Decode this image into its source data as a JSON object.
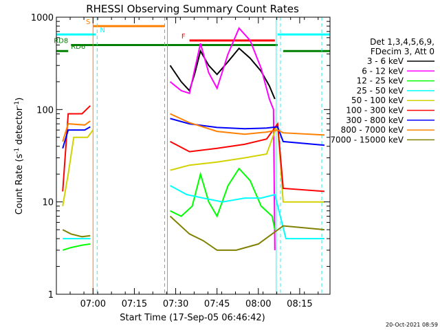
{
  "chart_data": {
    "type": "line",
    "title": "RHESSI Observing Summary Count Rates",
    "xlabel": "Start Time (17-Sep-05 06:46:42)",
    "ylabel_main": "Count Rate (s",
    "ylabel_sup1": "-1",
    "ylabel_mid": " detector",
    "ylabel_sup2": "-1",
    "ylabel_end": ")",
    "y_scale": "log",
    "ylim": [
      1,
      1000
    ],
    "xlim": [
      "06:46:42",
      "08:26:00"
    ],
    "x_ticks": [
      "07:00",
      "07:15",
      "07:30",
      "07:45",
      "08:00",
      "08:15"
    ],
    "y_ticks": [
      {
        "value": 1,
        "label": "1"
      },
      {
        "value": 10,
        "label": "10"
      },
      {
        "value": 100,
        "label": "100"
      },
      {
        "value": 1000,
        "label": "1000"
      }
    ],
    "legend_placement": "right",
    "legend_header": [
      "Det 1,3,4,5,6,9,",
      "FDecim 3, Att 0"
    ],
    "timestamp": "20-Oct-2021 08:59",
    "series": [
      {
        "name": "3 - 6 keV",
        "color": "#000000",
        "points": [
          [
            "07:28:00",
            300
          ],
          [
            "07:32:00",
            200
          ],
          [
            "07:35:00",
            160
          ],
          [
            "07:37:00",
            250
          ],
          [
            "07:39:00",
            430
          ],
          [
            "07:42:00",
            300
          ],
          [
            "07:45:00",
            240
          ],
          [
            "07:49:00",
            330
          ],
          [
            "07:53:00",
            460
          ],
          [
            "07:57:00",
            360
          ],
          [
            "08:01:00",
            260
          ],
          [
            "08:04:00",
            180
          ],
          [
            "08:06:00",
            130
          ]
        ]
      },
      {
        "name": "6 - 12 keV",
        "color": "#ff00ff",
        "points": [
          [
            "07:28:00",
            200
          ],
          [
            "07:32:00",
            160
          ],
          [
            "07:35:00",
            150
          ],
          [
            "07:37:00",
            280
          ],
          [
            "07:39:00",
            520
          ],
          [
            "07:42:00",
            250
          ],
          [
            "07:45:00",
            170
          ],
          [
            "07:49:00",
            400
          ],
          [
            "07:53:00",
            760
          ],
          [
            "07:57:00",
            560
          ],
          [
            "08:01:00",
            280
          ],
          [
            "08:04:00",
            130
          ],
          [
            "08:05:30",
            100
          ],
          [
            "08:06:00",
            3
          ]
        ]
      },
      {
        "name": "12 - 25 keV",
        "color": "#00ff00",
        "points": [
          [
            "06:49:00",
            3
          ],
          [
            "06:52:00",
            3.2
          ],
          [
            "06:56:00",
            3.4
          ],
          [
            "06:59:00",
            3.5
          ],
          [
            "07:28:00",
            8
          ],
          [
            "07:32:00",
            7
          ],
          [
            "07:36:00",
            9
          ],
          [
            "07:39:00",
            20
          ],
          [
            "07:42:00",
            10
          ],
          [
            "07:45:00",
            7
          ],
          [
            "07:49:00",
            15
          ],
          [
            "07:53:00",
            23
          ],
          [
            "07:57:00",
            17
          ],
          [
            "08:01:00",
            9
          ],
          [
            "08:05:00",
            7
          ],
          [
            "08:06:00",
            5
          ]
        ]
      },
      {
        "name": "25 - 50 keV",
        "color": "#00ffff",
        "points": [
          [
            "06:49:00",
            4
          ],
          [
            "06:56:00",
            4
          ],
          [
            "06:59:00",
            4
          ],
          [
            "07:28:00",
            15
          ],
          [
            "07:34:00",
            12
          ],
          [
            "07:40:00",
            11
          ],
          [
            "07:47:00",
            10
          ],
          [
            "07:55:00",
            11
          ],
          [
            "08:01:00",
            11
          ],
          [
            "08:06:00",
            12
          ],
          [
            "08:10:00",
            4
          ],
          [
            "08:24:00",
            4
          ]
        ]
      },
      {
        "name": "50 - 100 keV",
        "color": "#d2d200",
        "points": [
          [
            "06:49:00",
            9
          ],
          [
            "06:51:00",
            20
          ],
          [
            "06:53:00",
            50
          ],
          [
            "06:58:00",
            50
          ],
          [
            "07:00:00",
            60
          ],
          [
            "07:28:00",
            22
          ],
          [
            "07:35:00",
            25
          ],
          [
            "07:45:00",
            27
          ],
          [
            "07:55:00",
            30
          ],
          [
            "08:03:00",
            33
          ],
          [
            "08:07:00",
            70
          ],
          [
            "08:09:00",
            10
          ],
          [
            "08:24:00",
            10
          ]
        ]
      },
      {
        "name": "100 - 300 keV",
        "color": "#ff0000",
        "points": [
          [
            "06:49:00",
            13
          ],
          [
            "06:51:00",
            90
          ],
          [
            "06:56:00",
            90
          ],
          [
            "06:59:00",
            110
          ],
          [
            "07:28:00",
            45
          ],
          [
            "07:35:00",
            35
          ],
          [
            "07:45:00",
            38
          ],
          [
            "07:55:00",
            42
          ],
          [
            "08:03:00",
            48
          ],
          [
            "08:07:00",
            70
          ],
          [
            "08:09:00",
            14
          ],
          [
            "08:24:00",
            13
          ]
        ]
      },
      {
        "name": "300 - 800 keV",
        "color": "#0000ff",
        "points": [
          [
            "06:49:00",
            38
          ],
          [
            "06:51:00",
            60
          ],
          [
            "06:57:00",
            60
          ],
          [
            "06:59:00",
            65
          ],
          [
            "07:28:00",
            80
          ],
          [
            "07:35:00",
            70
          ],
          [
            "07:45:00",
            64
          ],
          [
            "07:55:00",
            62
          ],
          [
            "08:03:00",
            63
          ],
          [
            "08:07:00",
            65
          ],
          [
            "08:09:00",
            45
          ],
          [
            "08:24:00",
            41
          ]
        ]
      },
      {
        "name": "800 - 7000 keV",
        "color": "#ff8000",
        "points": [
          [
            "06:49:00",
            45
          ],
          [
            "06:51:00",
            70
          ],
          [
            "06:57:00",
            68
          ],
          [
            "06:59:00",
            75
          ],
          [
            "07:28:00",
            90
          ],
          [
            "07:35:00",
            72
          ],
          [
            "07:45:00",
            58
          ],
          [
            "07:55:00",
            54
          ],
          [
            "08:03:00",
            57
          ],
          [
            "08:07:00",
            60
          ],
          [
            "08:09:00",
            56
          ],
          [
            "08:24:00",
            53
          ]
        ]
      },
      {
        "name": "7000 - 15000 keV",
        "color": "#808000",
        "points": [
          [
            "06:49:00",
            5
          ],
          [
            "06:52:00",
            4.5
          ],
          [
            "06:56:00",
            4.2
          ],
          [
            "06:59:00",
            4.3
          ],
          [
            "07:28:00",
            7
          ],
          [
            "07:35:00",
            4.5
          ],
          [
            "07:40:00",
            3.8
          ],
          [
            "07:45:00",
            3
          ],
          [
            "07:52:00",
            3
          ],
          [
            "08:00:00",
            3.5
          ],
          [
            "08:05:00",
            4.5
          ],
          [
            "08:09:00",
            5.5
          ],
          [
            "08:24:00",
            5
          ]
        ]
      }
    ],
    "flag_bars": [
      {
        "label": "S",
        "color": "#ff8000",
        "start": "07:00:00",
        "end": "07:26:00",
        "value": 800
      },
      {
        "label": "N",
        "color": "#00ffff",
        "start": "06:46:42",
        "end": "07:01:00",
        "value": 650
      },
      {
        "label": "N",
        "color": "#00ffff",
        "start": "08:07:00",
        "end": "08:26:00",
        "value": 650
      },
      {
        "label": "F",
        "color": "#ff0000",
        "start": "07:35:00",
        "end": "08:06:00",
        "value": 560
      },
      {
        "label": "RD8",
        "color": "#008000",
        "start": "06:52:00",
        "end": "08:07:00",
        "value": 500
      },
      {
        "label": "RD6",
        "color": "#008000",
        "start": "06:46:42",
        "end": "06:51:00",
        "value": 430
      },
      {
        "label": "RD6",
        "color": "#008000",
        "start": "08:09:00",
        "end": "08:26:00",
        "value": 430
      }
    ],
    "marker_lines": [
      {
        "color": "#ff8000",
        "time": "07:00:00",
        "style": "solid"
      },
      {
        "color": "#00ffff",
        "time": "07:01:30",
        "style": "dashed"
      },
      {
        "color": "#ff8000",
        "time": "07:26:00",
        "style": "dashed"
      },
      {
        "color": "#ff8000",
        "time": "07:27:00",
        "style": "solid"
      },
      {
        "color": "#00ffff",
        "time": "08:06:30",
        "style": "solid"
      },
      {
        "color": "#00ffff",
        "time": "08:08:00",
        "style": "dashed"
      },
      {
        "color": "#00ffff",
        "time": "08:23:00",
        "style": "dashed"
      }
    ]
  }
}
